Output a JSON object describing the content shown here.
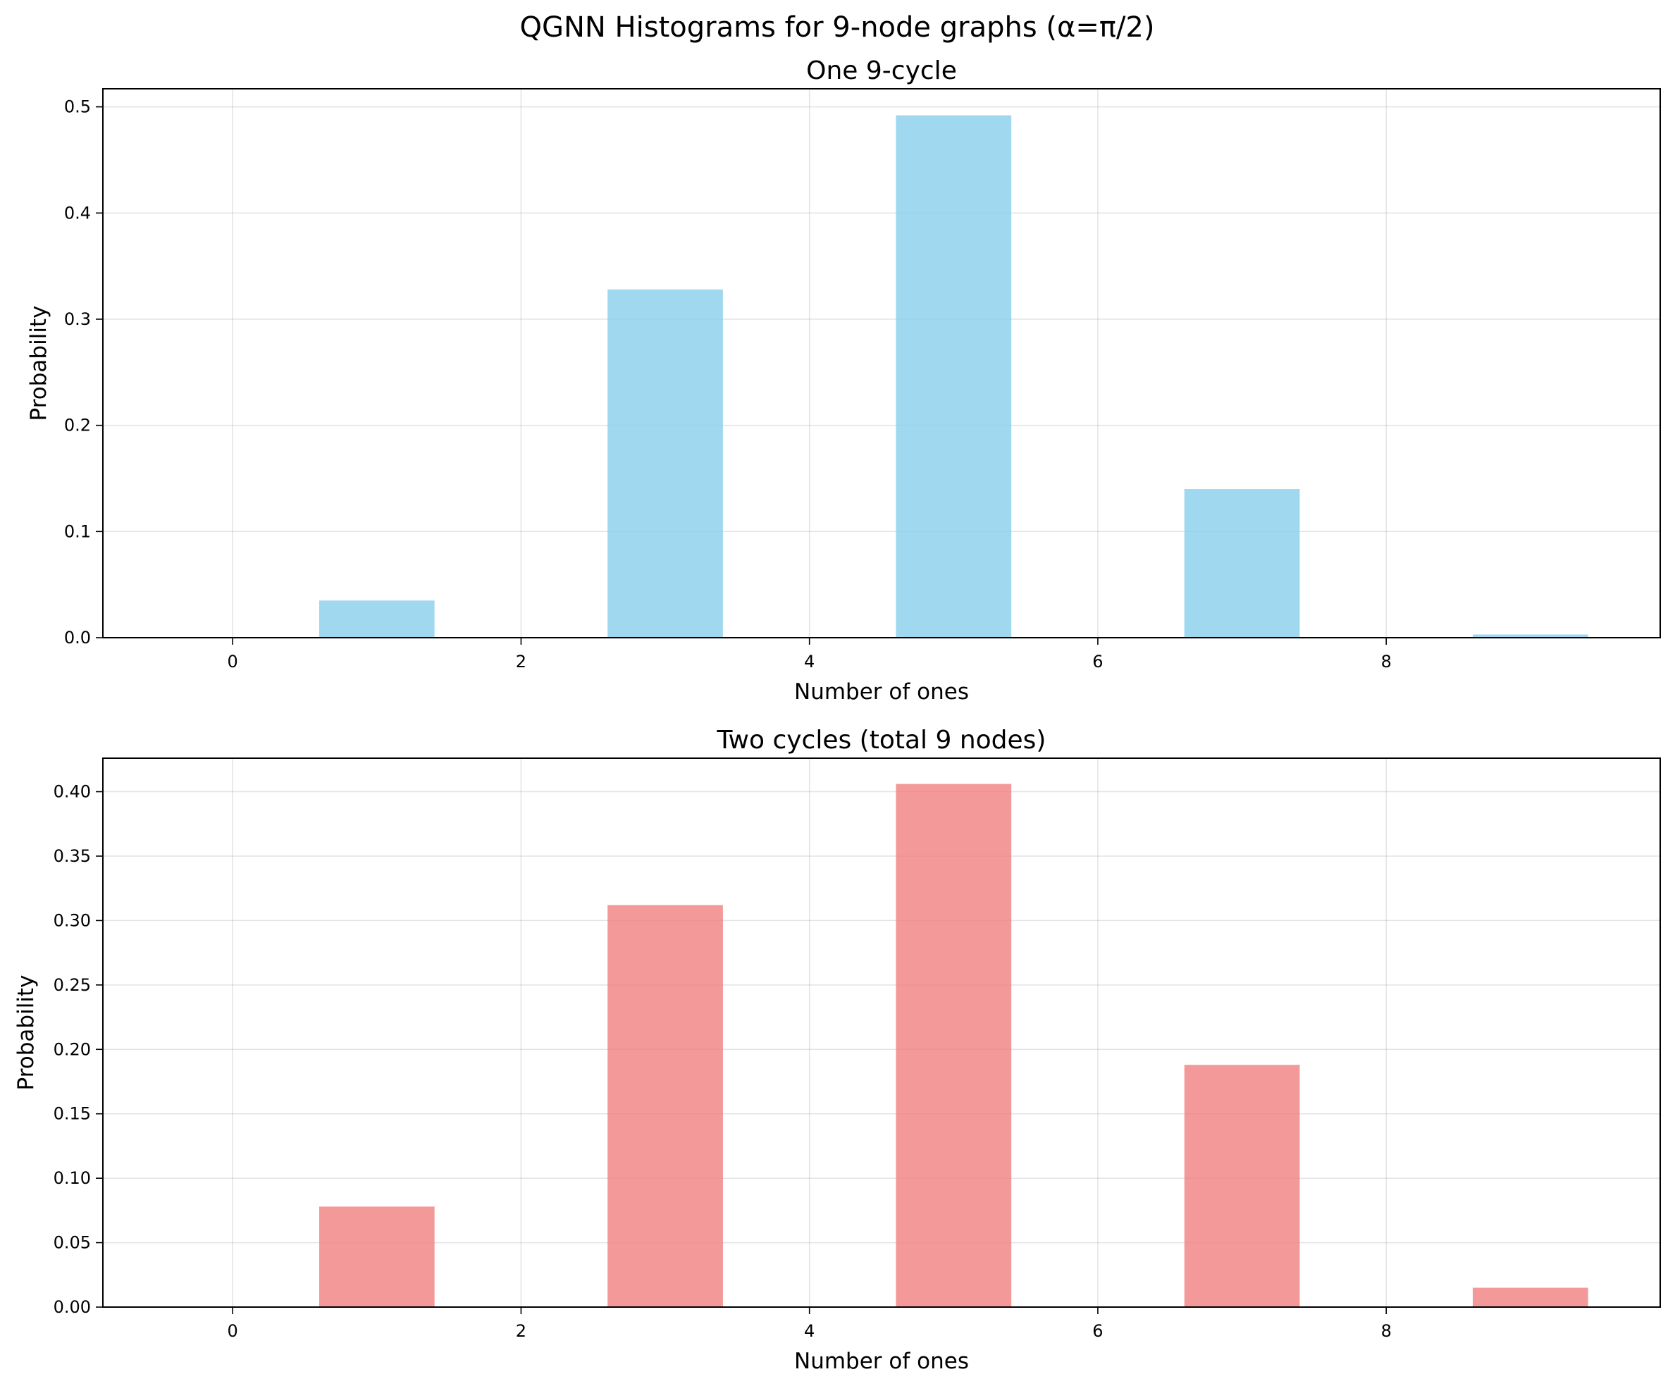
{
  "suptitle": "QGNN Histograms for 9-node graphs (α=π/2)",
  "chart_data": [
    {
      "type": "bar",
      "title": "One 9-cycle",
      "xlabel": "Number of ones",
      "ylabel": "Probability",
      "x": [
        1,
        3,
        5,
        7,
        9
      ],
      "values": [
        0.035,
        0.328,
        0.492,
        0.14,
        0.003
      ],
      "bar_width": 0.8,
      "color": "#87CEEB",
      "alpha": 0.8,
      "xlim": [
        -0.9,
        9.9
      ],
      "ylim": [
        0,
        0.517
      ],
      "xticks": [
        0,
        2,
        4,
        6,
        8
      ],
      "xtick_labels": [
        "0",
        "2",
        "4",
        "6",
        "8"
      ],
      "yticks": [
        0,
        0.1,
        0.2,
        0.3,
        0.4,
        0.5
      ],
      "ytick_labels": [
        "0.0",
        "0.1",
        "0.2",
        "0.3",
        "0.4",
        "0.5"
      ],
      "grid": true
    },
    {
      "type": "bar",
      "title": "Two cycles (total 9 nodes)",
      "xlabel": "Number of ones",
      "ylabel": "Probability",
      "x": [
        1,
        3,
        5,
        7,
        9
      ],
      "values": [
        0.078,
        0.312,
        0.406,
        0.188,
        0.015
      ],
      "bar_width": 0.8,
      "color": "#F08080",
      "alpha": 0.8,
      "xlim": [
        -0.9,
        9.9
      ],
      "ylim": [
        0,
        0.426
      ],
      "xticks": [
        0,
        2,
        4,
        6,
        8
      ],
      "xtick_labels": [
        "0",
        "2",
        "4",
        "6",
        "8"
      ],
      "yticks": [
        0,
        0.05,
        0.1,
        0.15,
        0.2,
        0.25,
        0.3,
        0.35,
        0.4
      ],
      "ytick_labels": [
        "0.00",
        "0.05",
        "0.10",
        "0.15",
        "0.20",
        "0.25",
        "0.30",
        "0.35",
        "0.40"
      ],
      "grid": true
    }
  ]
}
